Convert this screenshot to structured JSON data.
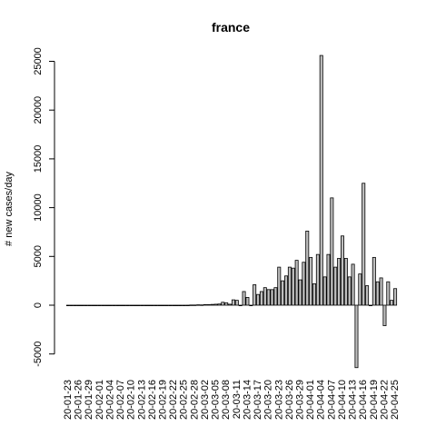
{
  "chart_data": {
    "type": "bar",
    "title": "france",
    "xlabel": "",
    "ylabel": "# new cases/day",
    "ylim": [
      -6500,
      26000
    ],
    "yticks": [
      -5000,
      0,
      5000,
      10000,
      15000,
      20000,
      25000
    ],
    "grid": false,
    "legend": "none",
    "bar_fill": "#bebebe",
    "bar_stroke": "#000000",
    "categories": [
      "20-01-23",
      "20-01-24",
      "20-01-25",
      "20-01-26",
      "20-01-27",
      "20-01-28",
      "20-01-29",
      "20-01-30",
      "20-01-31",
      "20-02-01",
      "20-02-02",
      "20-02-03",
      "20-02-04",
      "20-02-05",
      "20-02-06",
      "20-02-07",
      "20-02-08",
      "20-02-09",
      "20-02-10",
      "20-02-11",
      "20-02-12",
      "20-02-13",
      "20-02-14",
      "20-02-15",
      "20-02-16",
      "20-02-17",
      "20-02-18",
      "20-02-19",
      "20-02-20",
      "20-02-21",
      "20-02-22",
      "20-02-23",
      "20-02-24",
      "20-02-25",
      "20-02-26",
      "20-02-27",
      "20-02-28",
      "20-02-29",
      "20-03-01",
      "20-03-02",
      "20-03-03",
      "20-03-04",
      "20-03-05",
      "20-03-06",
      "20-03-07",
      "20-03-08",
      "20-03-09",
      "20-03-10",
      "20-03-11",
      "20-03-12",
      "20-03-13",
      "20-03-14",
      "20-03-15",
      "20-03-16",
      "20-03-17",
      "20-03-18",
      "20-03-19",
      "20-03-20",
      "20-03-21",
      "20-03-22",
      "20-03-23",
      "20-03-24",
      "20-03-25",
      "20-03-26",
      "20-03-27",
      "20-03-28",
      "20-03-29",
      "20-03-30",
      "20-03-31",
      "20-04-01",
      "20-04-02",
      "20-04-03",
      "20-04-04",
      "20-04-05",
      "20-04-06",
      "20-04-07",
      "20-04-08",
      "20-04-09",
      "20-04-10",
      "20-04-11",
      "20-04-12",
      "20-04-13",
      "20-04-14",
      "20-04-15",
      "20-04-16",
      "20-04-17",
      "20-04-18",
      "20-04-19",
      "20-04-20",
      "20-04-21",
      "20-04-22",
      "20-04-23",
      "20-04-24",
      "20-04-25"
    ],
    "visible_tick_labels": [
      "20-01-23",
      "20-01-26",
      "20-01-29",
      "20-02-01",
      "20-02-04",
      "20-02-07",
      "20-02-10",
      "20-02-13",
      "20-02-16",
      "20-02-19",
      "20-02-22",
      "20-02-25",
      "20-02-28",
      "20-03-02",
      "20-03-05",
      "20-03-08",
      "20-03-11",
      "20-03-14",
      "20-03-17",
      "20-03-20",
      "20-03-23",
      "20-03-26",
      "20-03-29",
      "20-04-01",
      "20-04-04",
      "20-04-07",
      "20-04-10",
      "20-04-13",
      "20-04-16",
      "20-04-19",
      "20-04-22",
      "20-04-25"
    ],
    "values": [
      0,
      0,
      0,
      0,
      0,
      0,
      0,
      0,
      0,
      0,
      0,
      0,
      0,
      0,
      0,
      0,
      0,
      0,
      0,
      0,
      0,
      0,
      0,
      0,
      0,
      0,
      0,
      0,
      0,
      0,
      0,
      0,
      0,
      0,
      2,
      20,
      20,
      40,
      30,
      60,
      60,
      80,
      100,
      120,
      300,
      250,
      100,
      550,
      500,
      0,
      1400,
      800,
      0,
      2100,
      1100,
      1400,
      1800,
      1600,
      1600,
      1800,
      3900,
      2500,
      3000,
      3900,
      3800,
      4600,
      2600,
      4400,
      7600,
      4900,
      2200,
      5200,
      25600,
      2900,
      5200,
      11000,
      3900,
      4800,
      7100,
      4800,
      2900,
      4200,
      -6400,
      3200,
      12500,
      2000,
      0,
      4900,
      2400,
      2800,
      -2100,
      2400,
      500,
      1700
    ]
  }
}
